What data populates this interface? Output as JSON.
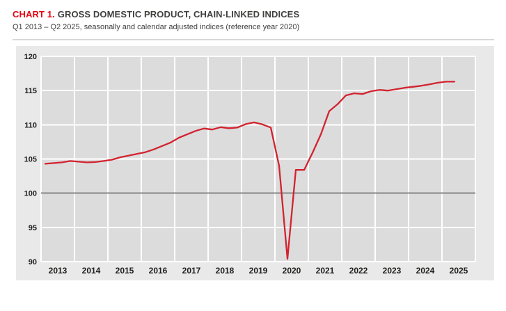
{
  "header": {
    "label": "CHART 1.",
    "title": "GROSS DOMESTIC PRODUCT, CHAIN-LINKED INDICES",
    "subtitle": "Q1 2013 – Q2 2025, seasonally and calendar adjusted indices (reference year 2020)"
  },
  "colors": {
    "accent_red": "#e30613",
    "line_red": "#d2232e",
    "panel_bg": "#e9e9e9",
    "plot_bg": "#dcdcdd",
    "grid": "#ffffff",
    "baseline": "#878787",
    "text_dark": "#1d1d1b"
  },
  "chart_data": {
    "type": "line",
    "title": "GROSS DOMESTIC PRODUCT, CHAIN-LINKED INDICES",
    "subtitle": "Q1 2013 – Q2 2025, seasonally and calendar adjusted indices (reference year 2020)",
    "x_unit": "quarter",
    "x_start": "2013-Q1",
    "x_end": "2025-Q2",
    "year_labels": [
      "2013",
      "2014",
      "2015",
      "2016",
      "2017",
      "2018",
      "2019",
      "2020",
      "2021",
      "2022",
      "2023",
      "2024",
      "2025"
    ],
    "y_ticks": [
      120,
      115,
      110,
      105,
      100,
      95,
      90
    ],
    "ylim": [
      90,
      120
    ],
    "baseline_value": 100,
    "grid": true,
    "legend": false,
    "quarters": [
      "2013-Q1",
      "2013-Q2",
      "2013-Q3",
      "2013-Q4",
      "2014-Q1",
      "2014-Q2",
      "2014-Q3",
      "2014-Q4",
      "2015-Q1",
      "2015-Q2",
      "2015-Q3",
      "2015-Q4",
      "2016-Q1",
      "2016-Q2",
      "2016-Q3",
      "2016-Q4",
      "2017-Q1",
      "2017-Q2",
      "2017-Q3",
      "2017-Q4",
      "2018-Q1",
      "2018-Q2",
      "2018-Q3",
      "2018-Q4",
      "2019-Q1",
      "2019-Q2",
      "2019-Q3",
      "2019-Q4",
      "2020-Q1",
      "2020-Q2",
      "2020-Q3",
      "2020-Q4",
      "2021-Q1",
      "2021-Q2",
      "2021-Q3",
      "2021-Q4",
      "2022-Q1",
      "2022-Q2",
      "2022-Q3",
      "2022-Q4",
      "2023-Q1",
      "2023-Q2",
      "2023-Q3",
      "2023-Q4",
      "2024-Q1",
      "2024-Q2",
      "2024-Q3",
      "2024-Q4",
      "2025-Q1",
      "2025-Q2"
    ],
    "values": [
      104.3,
      104.4,
      104.5,
      104.7,
      104.6,
      104.5,
      104.55,
      104.7,
      104.9,
      105.25,
      105.5,
      105.75,
      106.0,
      106.4,
      106.9,
      107.4,
      108.1,
      108.6,
      109.1,
      109.45,
      109.3,
      109.65,
      109.5,
      109.6,
      110.1,
      110.35,
      110.05,
      109.6,
      104.0,
      90.4,
      103.4,
      103.4,
      105.9,
      108.6,
      112.0,
      113.0,
      114.3,
      114.6,
      114.5,
      114.9,
      115.1,
      115.0,
      115.2,
      115.4,
      115.55,
      115.7,
      115.9,
      116.15,
      116.3,
      116.3
    ]
  }
}
